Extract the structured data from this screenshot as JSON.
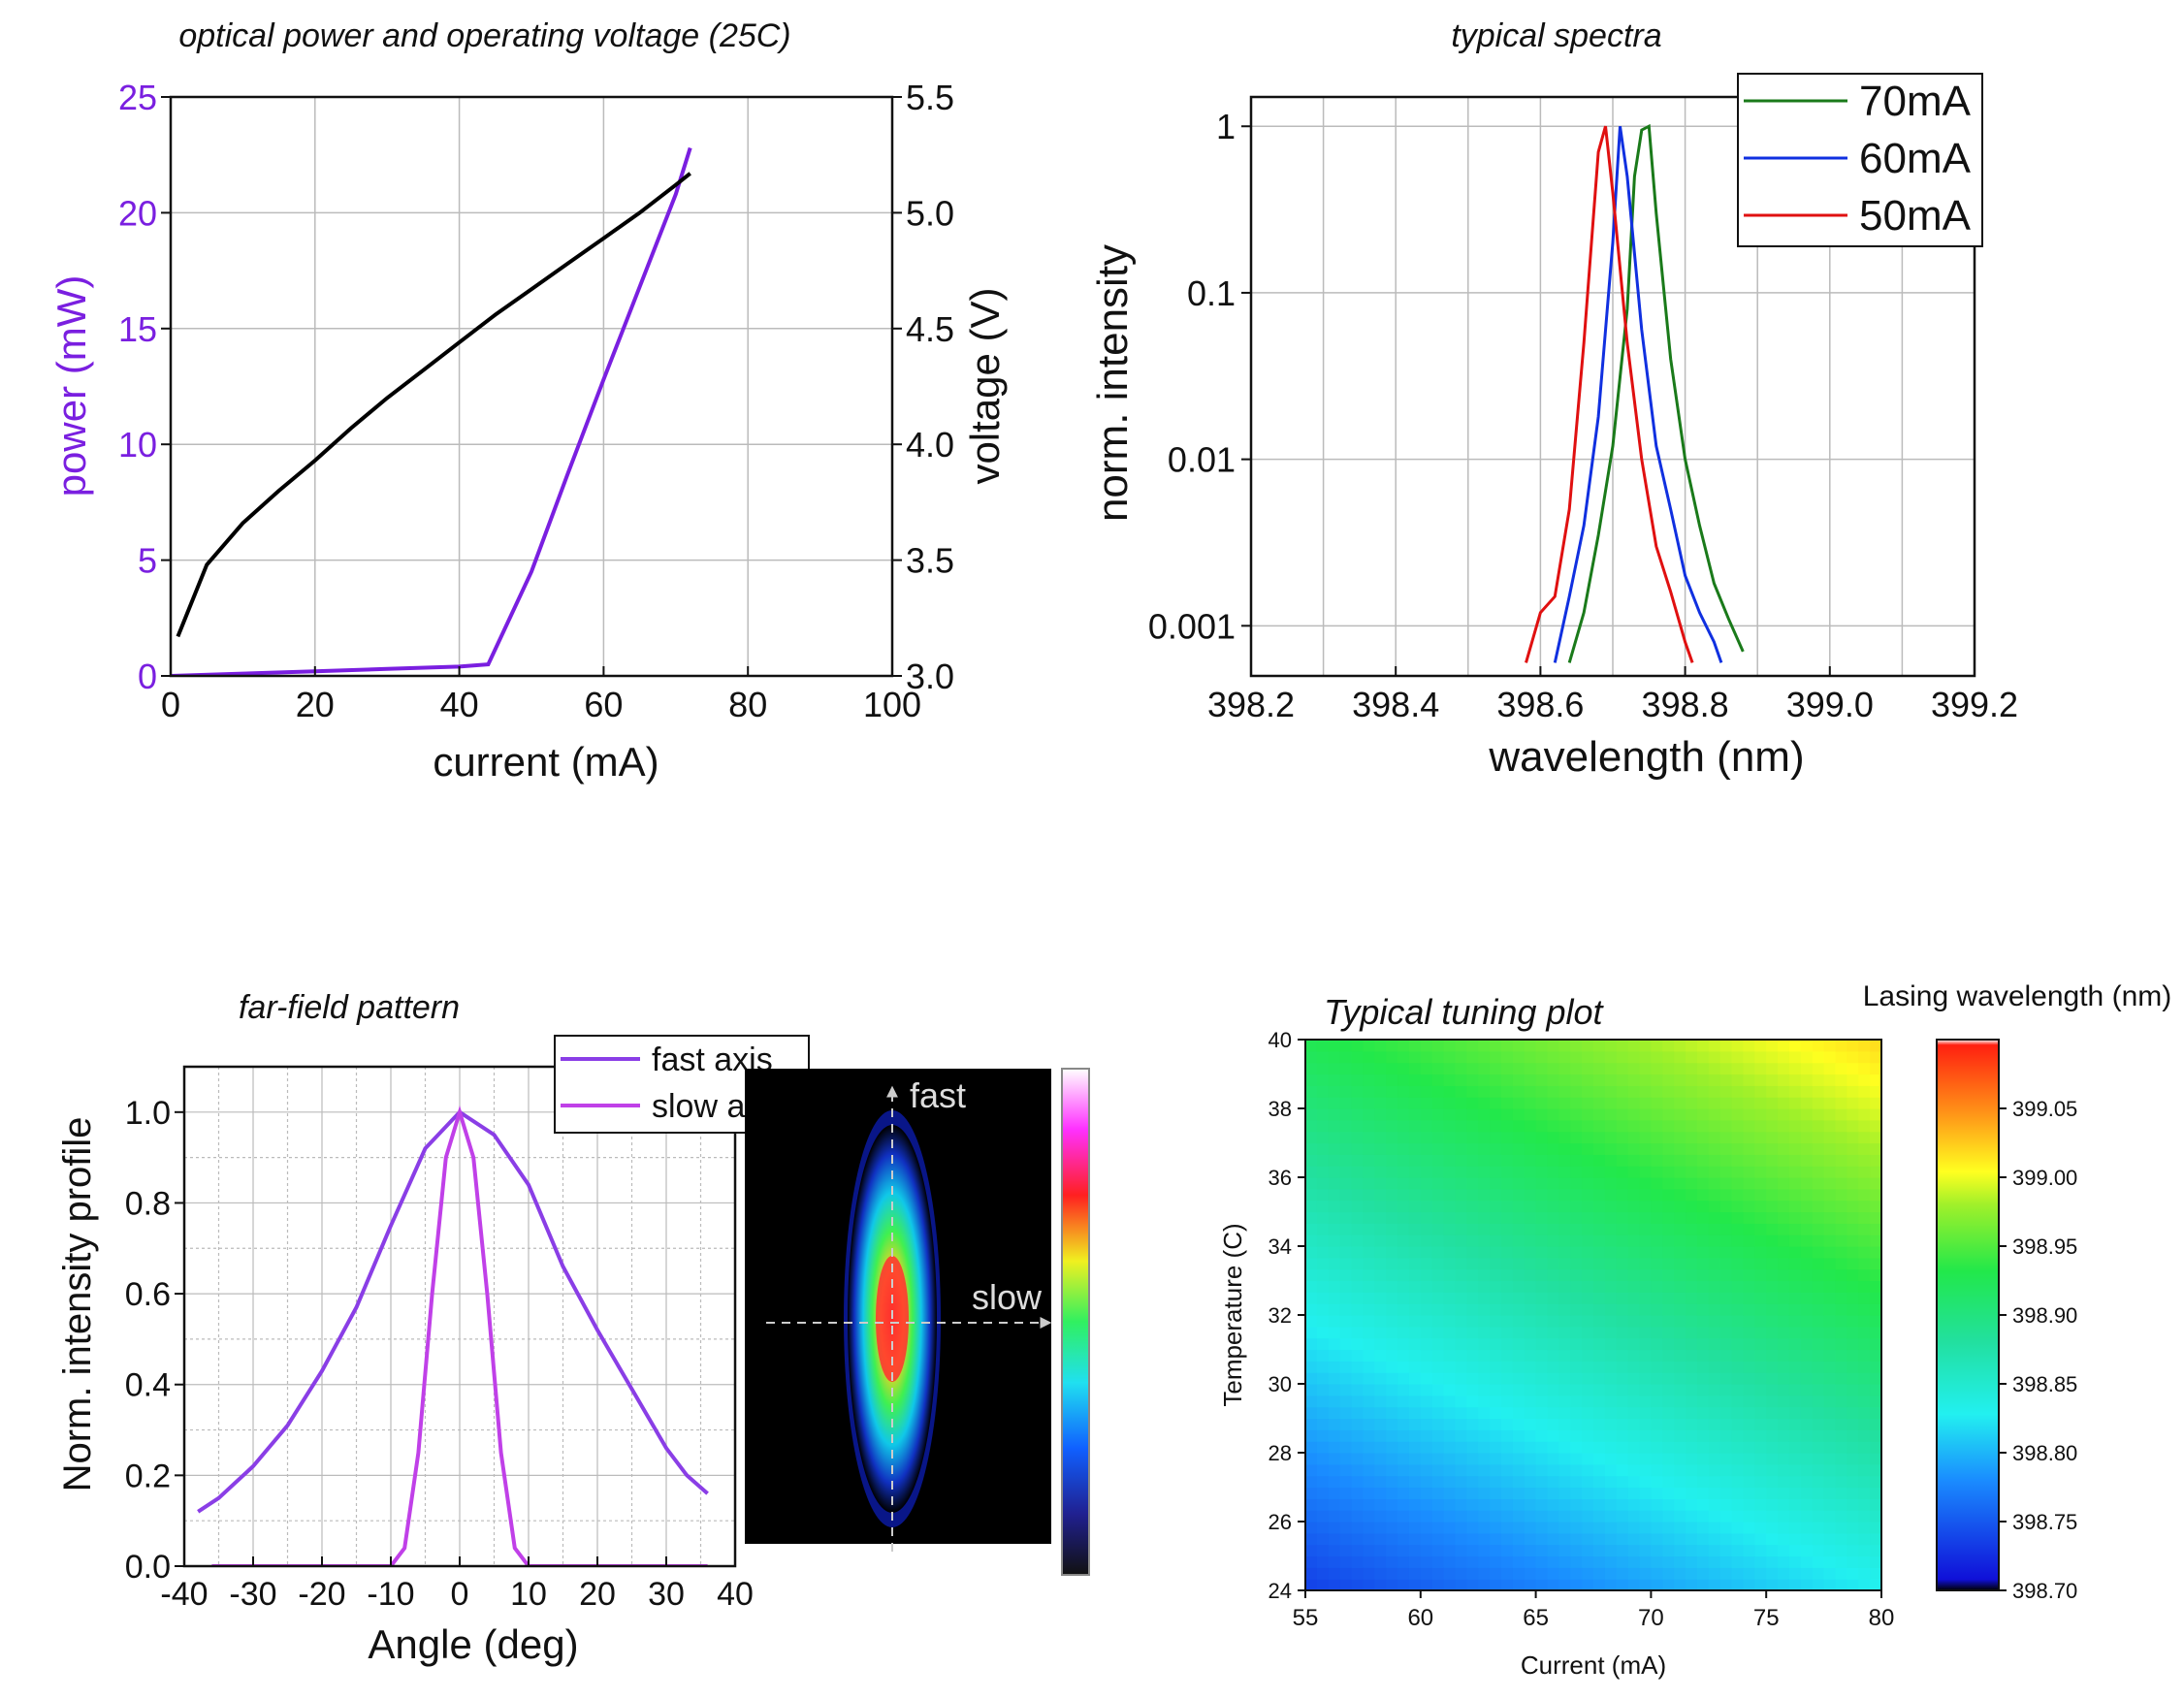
{
  "chart_data": [
    {
      "type": "line",
      "title": "optical power and operating voltage (25C)",
      "xlabel": "current (mA)",
      "ylabel": "power (mW)",
      "y2label": "voltage (V)",
      "xlim": [
        0,
        100
      ],
      "ylim": [
        0,
        25
      ],
      "y2lim": [
        3.0,
        5.5
      ],
      "xticks": [
        "0",
        "20",
        "40",
        "60",
        "80",
        "100"
      ],
      "yticks": [
        "0",
        "5",
        "10",
        "15",
        "20",
        "25"
      ],
      "y2ticks": [
        "3.0",
        "3.5",
        "4.0",
        "4.5",
        "5.0",
        "5.5"
      ],
      "grid": true,
      "series": [
        {
          "name": "power",
          "axis": "left",
          "color": "#7a1fe0",
          "x": [
            0,
            10,
            20,
            30,
            40,
            44,
            50,
            55,
            60,
            65,
            70,
            72
          ],
          "y": [
            0.0,
            0.1,
            0.2,
            0.3,
            0.4,
            0.5,
            4.5,
            8.7,
            12.8,
            16.8,
            20.8,
            22.8
          ]
        },
        {
          "name": "voltage",
          "axis": "right",
          "color": "#000000",
          "x": [
            1,
            5,
            10,
            15,
            20,
            25,
            30,
            35,
            40,
            45,
            50,
            55,
            60,
            65,
            70,
            72
          ],
          "y": [
            3.17,
            3.48,
            3.66,
            3.8,
            3.93,
            4.07,
            4.2,
            4.32,
            4.44,
            4.56,
            4.67,
            4.78,
            4.89,
            5.0,
            5.12,
            5.17
          ]
        }
      ]
    },
    {
      "type": "line",
      "title": "typical spectra",
      "xlabel": "wavelength (nm)",
      "ylabel": "norm. intensity",
      "yscale": "log",
      "xlim": [
        398.2,
        399.2
      ],
      "ylim": [
        0.0005,
        1.5
      ],
      "xticks": [
        "398.2",
        "398.4",
        "398.6",
        "398.8",
        "399.0",
        "399.2"
      ],
      "yticks": [
        "0.001",
        "0.01",
        "0.1",
        "1"
      ],
      "grid": true,
      "legend_position": "top-right",
      "series": [
        {
          "name": "70mA",
          "color": "#1a7a1a",
          "x": [
            398.64,
            398.66,
            398.68,
            398.7,
            398.72,
            398.73,
            398.74,
            398.75,
            398.76,
            398.78,
            398.8,
            398.82,
            398.84,
            398.86,
            398.88
          ],
          "y": [
            0.0006,
            0.0012,
            0.0035,
            0.012,
            0.08,
            0.5,
            0.95,
            1.0,
            0.3,
            0.04,
            0.01,
            0.004,
            0.0018,
            0.0011,
            0.0007
          ]
        },
        {
          "name": "60mA",
          "color": "#1030e0",
          "x": [
            398.62,
            398.64,
            398.66,
            398.68,
            398.7,
            398.71,
            398.72,
            398.74,
            398.76,
            398.78,
            398.8,
            398.82,
            398.84,
            398.85
          ],
          "y": [
            0.0006,
            0.0015,
            0.004,
            0.018,
            0.2,
            1.0,
            0.5,
            0.06,
            0.012,
            0.005,
            0.002,
            0.0012,
            0.0008,
            0.0006
          ]
        },
        {
          "name": "50mA",
          "color": "#e01010",
          "x": [
            398.58,
            398.6,
            398.62,
            398.64,
            398.66,
            398.68,
            398.69,
            398.7,
            398.72,
            398.74,
            398.76,
            398.78,
            398.8,
            398.81
          ],
          "y": [
            0.0006,
            0.0012,
            0.0015,
            0.005,
            0.05,
            0.7,
            1.0,
            0.4,
            0.05,
            0.01,
            0.003,
            0.0016,
            0.0008,
            0.0006
          ]
        }
      ]
    },
    {
      "type": "line",
      "title": "far-field pattern",
      "xlabel": "Angle (deg)",
      "ylabel": "Norm. intensity profile",
      "xlim": [
        -40,
        40
      ],
      "ylim": [
        0,
        1.1
      ],
      "xticks": [
        "-40",
        "-30",
        "-20",
        "-10",
        "0",
        "10",
        "20",
        "30",
        "40"
      ],
      "yticks": [
        "0.0",
        "0.2",
        "0.4",
        "0.6",
        "0.8",
        "1.0"
      ],
      "grid": true,
      "legend_position": "top-right",
      "series": [
        {
          "name": "fast axis",
          "color": "#8a3ee6",
          "x": [
            -38,
            -35,
            -30,
            -25,
            -20,
            -15,
            -10,
            -5,
            0,
            5,
            10,
            15,
            20,
            25,
            30,
            33,
            36
          ],
          "y": [
            0.12,
            0.15,
            0.22,
            0.31,
            0.43,
            0.57,
            0.75,
            0.92,
            1.0,
            0.95,
            0.84,
            0.66,
            0.52,
            0.39,
            0.26,
            0.2,
            0.16
          ]
        },
        {
          "name": "slow axis",
          "color": "#c040e8",
          "x": [
            -36,
            -20,
            -10,
            -8,
            -6,
            -4,
            -2,
            0,
            2,
            4,
            6,
            8,
            10,
            20,
            36
          ],
          "y": [
            0,
            0,
            0,
            0.04,
            0.25,
            0.6,
            0.9,
            1.0,
            0.9,
            0.6,
            0.25,
            0.04,
            0,
            0,
            0
          ]
        }
      ],
      "inset": {
        "axis_labels": [
          "fast",
          "slow"
        ]
      }
    },
    {
      "type": "heatmap",
      "title": "Typical tuning plot",
      "xlabel": "Current (mA)",
      "ylabel": "Temperature (C)",
      "xlim": [
        55,
        80
      ],
      "ylim": [
        24,
        40
      ],
      "xticks": [
        "55",
        "60",
        "65",
        "70",
        "75",
        "80"
      ],
      "yticks": [
        "24",
        "26",
        "28",
        "30",
        "32",
        "34",
        "36",
        "38",
        "40"
      ],
      "colorbar_label": "Lasing wavelength (nm)",
      "colorbar_range": [
        398.7,
        399.1
      ],
      "colorbar_ticks": [
        "398.70",
        "398.75",
        "398.80",
        "398.85",
        "398.90",
        "398.95",
        "399.00",
        "399.05"
      ],
      "model": {
        "base": 398.735,
        "per_mA": 0.0037,
        "per_C": 0.012,
        "ref_current": 55,
        "ref_temp": 24
      }
    }
  ]
}
